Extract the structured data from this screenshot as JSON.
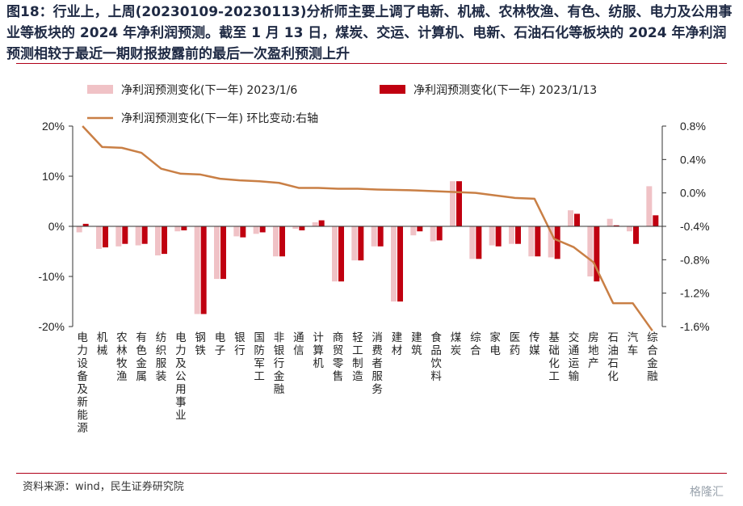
{
  "title": "图18：行业上，上周(20230109-20230113)分析师主要上调了电新、机械、农林牧渔、有色、纺服、电力及公用事业等板块的 2024 年净利润预测。截至 1 月 13 日，煤炭、交运、计算机、电新、石油石化等板块的 2024 年净利润预测相较于最近一期财报披露前的最后一次盈利预测上升",
  "source": "资料来源：wind，民生证券研究院",
  "watermark": "格隆汇",
  "colors": {
    "series1": "#f0c2c6",
    "series2": "#c00010",
    "line": "#c97f45",
    "rule": "#b00018"
  },
  "chart_data": {
    "type": "bar",
    "categories": [
      "电力设备及新能源",
      "机械",
      "农林牧渔",
      "有色金属",
      "纺织服装",
      "电力及公用事业",
      "钢铁",
      "电子",
      "银行",
      "国防军工",
      "非银行金融",
      "通信",
      "计算机",
      "商贸零售",
      "轻工制造",
      "消费者服务",
      "建材",
      "建筑",
      "食品饮料",
      "煤炭",
      "综合",
      "家电",
      "医药",
      "传媒",
      "基础化工",
      "交通运输",
      "房地产",
      "石油石化",
      "汽车",
      "综合金融"
    ],
    "series": [
      {
        "name": "净利润预测变化(下一年) 2023/1/6",
        "axis": "left",
        "values": [
          -1.2,
          -4.5,
          -4.0,
          -3.8,
          -5.8,
          -1.0,
          -17.5,
          -10.5,
          -2.0,
          -1.5,
          -6.0,
          -0.5,
          0.8,
          -11.0,
          -6.8,
          -4.0,
          -15.0,
          -1.8,
          -3.0,
          9.0,
          -6.5,
          -3.8,
          -3.5,
          -6.0,
          -6.2,
          3.2,
          -10.0,
          1.5,
          -1.0,
          8.0
        ]
      },
      {
        "name": "净利润预测变化(下一年) 2023/1/13",
        "axis": "left",
        "values": [
          0.5,
          -4.2,
          -3.5,
          -3.5,
          -5.5,
          -0.8,
          -17.5,
          -10.5,
          -2.2,
          -1.2,
          -6.0,
          -0.8,
          1.2,
          -11.0,
          -6.8,
          -4.0,
          -15.0,
          -1.0,
          -2.8,
          9.0,
          -6.5,
          -4.0,
          -3.5,
          -6.0,
          -6.5,
          2.5,
          -11.0,
          0.2,
          -3.5,
          2.2
        ]
      },
      {
        "name": "净利润预测变化(下一年) 环比变动:右轴",
        "axis": "right",
        "type": "line",
        "values": [
          0.8,
          0.55,
          0.54,
          0.48,
          0.29,
          0.23,
          0.22,
          0.17,
          0.15,
          0.14,
          0.12,
          0.06,
          0.06,
          0.05,
          0.05,
          0.04,
          0.035,
          0.03,
          0.02,
          0.01,
          0.0,
          -0.03,
          -0.06,
          -0.07,
          -0.55,
          -0.65,
          -0.83,
          -1.32,
          -1.32,
          -1.65
        ]
      }
    ],
    "y_left": {
      "ticks": [
        "20%",
        "10%",
        "0%",
        "-10%",
        "-20%"
      ],
      "lim": [
        -20,
        20
      ]
    },
    "y_right": {
      "ticks": [
        "0.8%",
        "0.4%",
        "0.0%",
        "-0.4%",
        "-0.8%",
        "-1.2%",
        "-1.6%"
      ],
      "lim": [
        -1.6,
        0.8
      ]
    },
    "legend_position": "top-left"
  }
}
